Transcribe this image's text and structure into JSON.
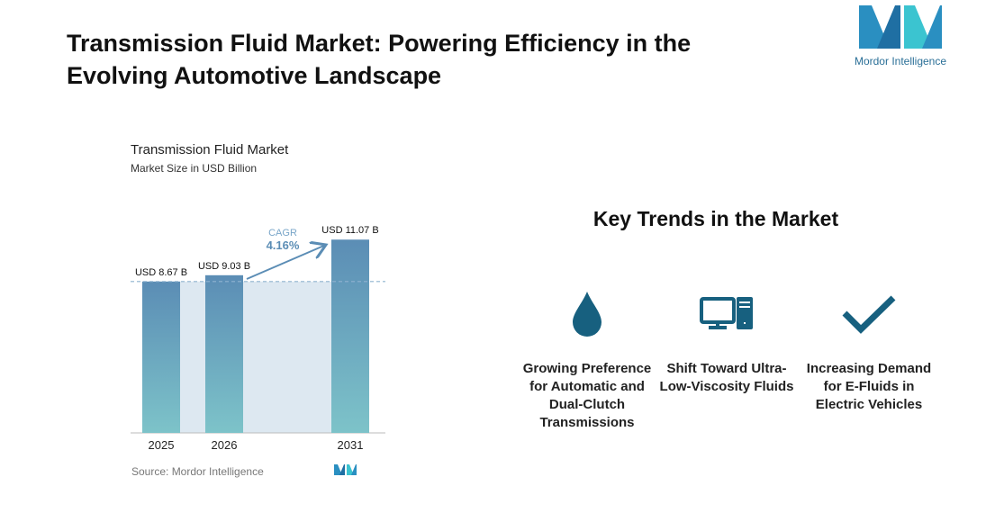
{
  "title": "Transmission Fluid Market: Powering Efficiency in the Evolving Automotive Landscape",
  "logo": {
    "text": "Mordor Intelligence"
  },
  "chart_data": {
    "type": "bar",
    "title": "Transmission Fluid Market",
    "subtitle": "Market Size in USD Billion",
    "categories": [
      "2025",
      "2026",
      "2031"
    ],
    "values": [
      8.67,
      9.03,
      11.07
    ],
    "data_labels": [
      "USD 8.67 B",
      "USD 9.03 B",
      "USD 11.07 B"
    ],
    "cagr_label": "CAGR",
    "cagr_value": "4.16%",
    "source": "Source: Mordor Intelligence",
    "colors": {
      "bar_top": "#5b8db5",
      "bar_bottom": "#7dc3c9",
      "shade": "#dde8f1",
      "arrow": "#5b8db5"
    }
  },
  "trends": {
    "heading": "Key Trends in the Market",
    "icon_color": "#17607f",
    "items": [
      {
        "icon": "drop-icon",
        "label": "Growing Preference for Automatic and Dual-Clutch Transmissions"
      },
      {
        "icon": "computer-icon",
        "label": "Shift Toward Ultra-Low-Viscosity Fluids"
      },
      {
        "icon": "checkmark-icon",
        "label": "Increasing Demand for E-Fluids in Electric Vehicles"
      }
    ]
  }
}
